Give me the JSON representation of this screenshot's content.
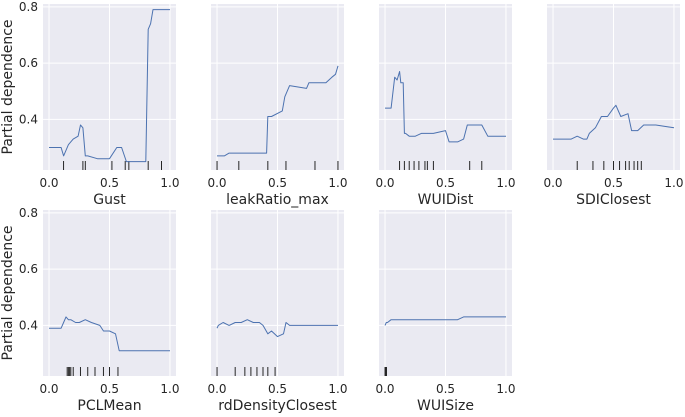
{
  "figure": {
    "ylabel": "Partial dependence",
    "background": "#eaeaf2",
    "grid_color": "#ffffff",
    "line_color": "#4c72b0",
    "rug_color": "#262626"
  },
  "chart_data": [
    {
      "type": "line",
      "xlabel": "Gust",
      "ylabel": "Partial dependence",
      "xlim": [
        -0.05,
        1.05
      ],
      "ylim": [
        0.22,
        0.81
      ],
      "xticks": [
        "0.0",
        "0.5",
        "1.0"
      ],
      "yticks": [
        "0.4",
        "0.6",
        "0.8"
      ],
      "grid": true,
      "x": [
        0.0,
        0.1,
        0.12,
        0.16,
        0.2,
        0.24,
        0.26,
        0.28,
        0.3,
        0.32,
        0.4,
        0.5,
        0.56,
        0.6,
        0.64,
        0.7,
        0.75,
        0.8,
        0.82,
        0.84,
        0.86,
        0.95,
        1.0
      ],
      "y": [
        0.3,
        0.3,
        0.27,
        0.31,
        0.33,
        0.34,
        0.38,
        0.37,
        0.27,
        0.27,
        0.26,
        0.26,
        0.3,
        0.3,
        0.25,
        0.25,
        0.25,
        0.25,
        0.72,
        0.74,
        0.79,
        0.79,
        0.79
      ],
      "rug": [
        0.12,
        0.28,
        0.3,
        0.52,
        0.63,
        0.66,
        0.82,
        0.93
      ]
    },
    {
      "type": "line",
      "xlabel": "leakRatio_max",
      "ylabel": "Partial dependence",
      "xlim": [
        -0.05,
        1.05
      ],
      "ylim": [
        0.22,
        0.81
      ],
      "xticks": [
        "0.0",
        "0.5",
        "1.0"
      ],
      "yticks": [],
      "grid": true,
      "x": [
        0.0,
        0.06,
        0.1,
        0.3,
        0.41,
        0.42,
        0.45,
        0.54,
        0.56,
        0.6,
        0.74,
        0.76,
        0.9,
        0.95,
        0.98,
        1.0
      ],
      "y": [
        0.27,
        0.27,
        0.28,
        0.28,
        0.28,
        0.41,
        0.41,
        0.43,
        0.48,
        0.52,
        0.51,
        0.53,
        0.53,
        0.55,
        0.56,
        0.59
      ],
      "rug": [
        0.0,
        0.18,
        0.42,
        0.57,
        0.81,
        1.0
      ]
    },
    {
      "type": "line",
      "xlabel": "WUIDist",
      "ylabel": "Partial dependence",
      "xlim": [
        -0.05,
        1.05
      ],
      "ylim": [
        0.22,
        0.81
      ],
      "xticks": [
        "0.0",
        "0.5",
        "1.0"
      ],
      "yticks": [],
      "grid": true,
      "x": [
        0.0,
        0.05,
        0.08,
        0.1,
        0.12,
        0.13,
        0.15,
        0.16,
        0.17,
        0.2,
        0.25,
        0.3,
        0.4,
        0.5,
        0.53,
        0.6,
        0.65,
        0.68,
        0.72,
        0.8,
        0.85,
        1.0
      ],
      "y": [
        0.44,
        0.44,
        0.55,
        0.54,
        0.57,
        0.53,
        0.53,
        0.35,
        0.35,
        0.34,
        0.34,
        0.35,
        0.35,
        0.36,
        0.32,
        0.32,
        0.33,
        0.38,
        0.38,
        0.38,
        0.34,
        0.34
      ],
      "rug": [
        0.12,
        0.16,
        0.2,
        0.24,
        0.28,
        0.33,
        0.35,
        0.4,
        0.7,
        0.8
      ]
    },
    {
      "type": "line",
      "xlabel": "SDIClosest",
      "ylabel": "Partial dependence",
      "xlim": [
        -0.05,
        1.05
      ],
      "ylim": [
        0.22,
        0.81
      ],
      "xticks": [
        "0.0",
        "0.5",
        "1.0"
      ],
      "yticks": [],
      "grid": true,
      "x": [
        0.0,
        0.15,
        0.2,
        0.25,
        0.28,
        0.3,
        0.35,
        0.4,
        0.45,
        0.5,
        0.52,
        0.56,
        0.62,
        0.65,
        0.7,
        0.75,
        0.85,
        1.0
      ],
      "y": [
        0.33,
        0.33,
        0.34,
        0.33,
        0.33,
        0.35,
        0.37,
        0.41,
        0.41,
        0.44,
        0.45,
        0.41,
        0.42,
        0.36,
        0.36,
        0.38,
        0.38,
        0.37
      ],
      "rug": [
        0.2,
        0.33,
        0.42,
        0.5,
        0.55,
        0.6,
        0.63,
        0.67,
        0.7,
        0.73
      ]
    },
    {
      "type": "line",
      "xlabel": "PCLMean",
      "ylabel": "Partial dependence",
      "xlim": [
        -0.05,
        1.05
      ],
      "ylim": [
        0.22,
        0.81
      ],
      "xticks": [
        "0.0",
        "0.5",
        "1.0"
      ],
      "yticks": [
        "0.4",
        "0.6",
        "0.8"
      ],
      "grid": true,
      "x": [
        0.0,
        0.1,
        0.12,
        0.14,
        0.16,
        0.18,
        0.22,
        0.25,
        0.3,
        0.35,
        0.42,
        0.45,
        0.5,
        0.55,
        0.58,
        0.6,
        0.7,
        0.8,
        1.0
      ],
      "y": [
        0.39,
        0.39,
        0.41,
        0.43,
        0.42,
        0.42,
        0.41,
        0.41,
        0.42,
        0.41,
        0.4,
        0.38,
        0.38,
        0.37,
        0.31,
        0.31,
        0.31,
        0.31,
        0.31
      ],
      "rug": [
        0.15,
        0.16,
        0.17,
        0.18,
        0.2,
        0.26,
        0.32,
        0.38,
        0.45,
        0.5,
        0.57
      ]
    },
    {
      "type": "line",
      "xlabel": "rdDensityClosest",
      "ylabel": "Partial dependence",
      "xlim": [
        -0.05,
        1.05
      ],
      "ylim": [
        0.22,
        0.81
      ],
      "xticks": [
        "0.0",
        "0.5",
        "1.0"
      ],
      "yticks": [],
      "grid": true,
      "x": [
        0.0,
        0.01,
        0.05,
        0.1,
        0.15,
        0.2,
        0.25,
        0.3,
        0.35,
        0.38,
        0.42,
        0.45,
        0.5,
        0.55,
        0.57,
        0.6,
        0.7,
        1.0
      ],
      "y": [
        0.39,
        0.4,
        0.41,
        0.4,
        0.41,
        0.41,
        0.42,
        0.41,
        0.41,
        0.4,
        0.37,
        0.38,
        0.36,
        0.37,
        0.41,
        0.4,
        0.4,
        0.4
      ],
      "rug": [
        0.0,
        0.15,
        0.23,
        0.28,
        0.33,
        0.38,
        0.42,
        0.48
      ]
    },
    {
      "type": "line",
      "xlabel": "WUISize",
      "ylabel": "Partial dependence",
      "xlim": [
        -0.05,
        1.05
      ],
      "ylim": [
        0.22,
        0.81
      ],
      "xticks": [
        "0.0",
        "0.5",
        "1.0"
      ],
      "yticks": [],
      "grid": true,
      "x": [
        0.0,
        0.01,
        0.02,
        0.05,
        0.3,
        0.6,
        0.65,
        1.0
      ],
      "y": [
        0.4,
        0.41,
        0.41,
        0.42,
        0.42,
        0.42,
        0.43,
        0.43
      ],
      "rug": [
        0.0,
        0.003,
        0.006,
        0.009,
        0.012
      ]
    }
  ]
}
